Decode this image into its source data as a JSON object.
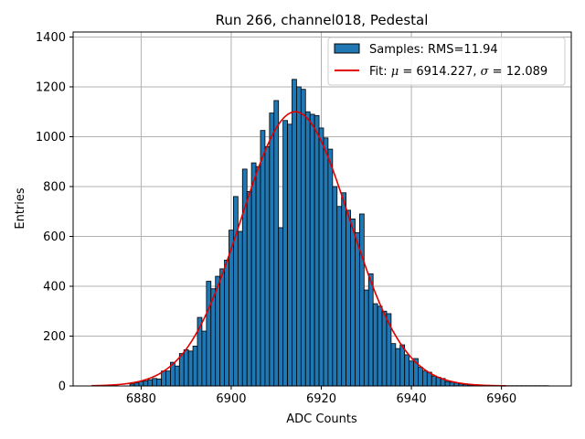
{
  "chart_data": {
    "type": "bar",
    "title": "Run 266, channel018, Pedestal",
    "xlabel": "ADC Counts",
    "ylabel": "Entries",
    "xlim": [
      6864.9,
      6975.5
    ],
    "ylim": [
      0,
      1420
    ],
    "xticks": [
      6880,
      6900,
      6920,
      6940,
      6960
    ],
    "yticks": [
      0,
      200,
      400,
      600,
      800,
      1000,
      1200,
      1400
    ],
    "grid": true,
    "legend_position": "top-right",
    "bar_color": "#1f77b4",
    "fit_color": "#e00000",
    "histogram": {
      "name": "Samples: RMS=11.94",
      "bin_width": 1,
      "bins": [
        {
          "x": 6878,
          "y": 8
        },
        {
          "x": 6879,
          "y": 12
        },
        {
          "x": 6880,
          "y": 18
        },
        {
          "x": 6881,
          "y": 20
        },
        {
          "x": 6882,
          "y": 25
        },
        {
          "x": 6883,
          "y": 30
        },
        {
          "x": 6884,
          "y": 28
        },
        {
          "x": 6885,
          "y": 60
        },
        {
          "x": 6886,
          "y": 60
        },
        {
          "x": 6887,
          "y": 95
        },
        {
          "x": 6888,
          "y": 80
        },
        {
          "x": 6889,
          "y": 130
        },
        {
          "x": 6890,
          "y": 145
        },
        {
          "x": 6891,
          "y": 140
        },
        {
          "x": 6892,
          "y": 160
        },
        {
          "x": 6893,
          "y": 275
        },
        {
          "x": 6894,
          "y": 220
        },
        {
          "x": 6895,
          "y": 420
        },
        {
          "x": 6896,
          "y": 390
        },
        {
          "x": 6897,
          "y": 440
        },
        {
          "x": 6898,
          "y": 470
        },
        {
          "x": 6899,
          "y": 505
        },
        {
          "x": 6900,
          "y": 625
        },
        {
          "x": 6901,
          "y": 760
        },
        {
          "x": 6902,
          "y": 620
        },
        {
          "x": 6903,
          "y": 870
        },
        {
          "x": 6904,
          "y": 780
        },
        {
          "x": 6905,
          "y": 895
        },
        {
          "x": 6906,
          "y": 880
        },
        {
          "x": 6907,
          "y": 1025
        },
        {
          "x": 6908,
          "y": 960
        },
        {
          "x": 6909,
          "y": 1095
        },
        {
          "x": 6910,
          "y": 1145
        },
        {
          "x": 6911,
          "y": 635
        },
        {
          "x": 6912,
          "y": 1065
        },
        {
          "x": 6913,
          "y": 1050
        },
        {
          "x": 6914,
          "y": 1230
        },
        {
          "x": 6915,
          "y": 1200
        },
        {
          "x": 6916,
          "y": 1190
        },
        {
          "x": 6917,
          "y": 1100
        },
        {
          "x": 6918,
          "y": 1090
        },
        {
          "x": 6919,
          "y": 1085
        },
        {
          "x": 6920,
          "y": 1035
        },
        {
          "x": 6921,
          "y": 995
        },
        {
          "x": 6922,
          "y": 950
        },
        {
          "x": 6923,
          "y": 800
        },
        {
          "x": 6924,
          "y": 720
        },
        {
          "x": 6925,
          "y": 775
        },
        {
          "x": 6926,
          "y": 705
        },
        {
          "x": 6927,
          "y": 670
        },
        {
          "x": 6928,
          "y": 615
        },
        {
          "x": 6929,
          "y": 690
        },
        {
          "x": 6930,
          "y": 385
        },
        {
          "x": 6931,
          "y": 450
        },
        {
          "x": 6932,
          "y": 330
        },
        {
          "x": 6933,
          "y": 320
        },
        {
          "x": 6934,
          "y": 300
        },
        {
          "x": 6935,
          "y": 290
        },
        {
          "x": 6936,
          "y": 170
        },
        {
          "x": 6937,
          "y": 150
        },
        {
          "x": 6938,
          "y": 165
        },
        {
          "x": 6939,
          "y": 125
        },
        {
          "x": 6940,
          "y": 100
        },
        {
          "x": 6941,
          "y": 110
        },
        {
          "x": 6942,
          "y": 75
        },
        {
          "x": 6943,
          "y": 60
        },
        {
          "x": 6944,
          "y": 55
        },
        {
          "x": 6945,
          "y": 40
        },
        {
          "x": 6946,
          "y": 35
        },
        {
          "x": 6947,
          "y": 30
        },
        {
          "x": 6948,
          "y": 18
        },
        {
          "x": 6949,
          "y": 15
        },
        {
          "x": 6950,
          "y": 12
        },
        {
          "x": 6951,
          "y": 8
        },
        {
          "x": 6952,
          "y": 6
        },
        {
          "x": 6953,
          "y": 4
        },
        {
          "x": 6954,
          "y": 3
        },
        {
          "x": 6955,
          "y": 3
        },
        {
          "x": 6956,
          "y": 2
        },
        {
          "x": 6957,
          "y": 2
        },
        {
          "x": 6958,
          "y": 1
        },
        {
          "x": 6959,
          "y": 1
        },
        {
          "x": 6960,
          "y": 1
        },
        {
          "x": 6961,
          "y": 1
        },
        {
          "x": 6962,
          "y": 1
        },
        {
          "x": 6963,
          "y": 1
        },
        {
          "x": 6964,
          "y": 1
        },
        {
          "x": 6965,
          "y": 1
        },
        {
          "x": 6966,
          "y": 1
        },
        {
          "x": 6967,
          "y": 1
        },
        {
          "x": 6968,
          "y": 1
        },
        {
          "x": 6969,
          "y": 1
        },
        {
          "x": 6970,
          "y": 1
        }
      ]
    },
    "fit": {
      "legend_prefix": "Fit: ",
      "legend_mu_symbol": "μ",
      "legend_mu_text": " = 6914.227, ",
      "legend_sigma_symbol": "σ",
      "legend_sigma_text": " = 12.089",
      "type": "gaussian",
      "mu": 6914.227,
      "sigma": 12.089,
      "amplitude": 1100,
      "x_range": [
        6869,
        6961
      ]
    }
  }
}
